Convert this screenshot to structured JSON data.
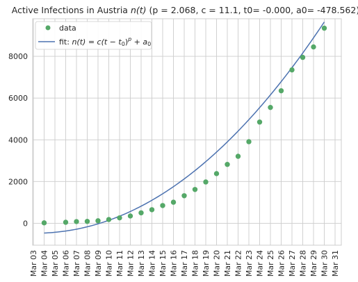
{
  "chart_data": {
    "type": "scatter",
    "title_parts": [
      "Active Infections in Austria ",
      "n(t)",
      " (p = 2.068, c = 11.1, t0= -0.000, a0= -478.562)"
    ],
    "xlabel": "",
    "ylabel": "",
    "x_ticks": [
      "Mar 03",
      "Mar 04",
      "Mar 05",
      "Mar 06",
      "Mar 07",
      "Mar 08",
      "Mar 09",
      "Mar 10",
      "Mar 11",
      "Mar 12",
      "Mar 13",
      "Mar 14",
      "Mar 15",
      "Mar 16",
      "Mar 17",
      "Mar 18",
      "Mar 19",
      "Mar 20",
      "Mar 21",
      "Mar 22",
      "Mar 23",
      "Mar 24",
      "Mar 25",
      "Mar 26",
      "Mar 27",
      "Mar 28",
      "Mar 29",
      "Mar 30",
      "Mar 31"
    ],
    "y_ticks": [
      "0",
      "2000",
      "4000",
      "6000",
      "8000"
    ],
    "ylim": [
      -1050,
      9800
    ],
    "grid": true,
    "legend_position": "top-left",
    "series": [
      {
        "name": "data",
        "kind": "scatter",
        "color": "#55a868",
        "x": [
          "Mar 04",
          "Mar 06",
          "Mar 07",
          "Mar 08",
          "Mar 09",
          "Mar 10",
          "Mar 11",
          "Mar 12",
          "Mar 13",
          "Mar 14",
          "Mar 15",
          "Mar 16",
          "Mar 17",
          "Mar 18",
          "Mar 19",
          "Mar 20",
          "Mar 21",
          "Mar 22",
          "Mar 23",
          "Mar 24",
          "Mar 25",
          "Mar 26",
          "Mar 27",
          "Mar 28",
          "Mar 29",
          "Mar 30"
        ],
        "y": [
          20,
          50,
          80,
          90,
          120,
          180,
          260,
          350,
          500,
          650,
          850,
          1010,
          1320,
          1620,
          1980,
          2380,
          2820,
          3210,
          3910,
          4850,
          5550,
          6350,
          7350,
          7950,
          8450,
          9350
        ]
      },
      {
        "name_parts": [
          "fit: ",
          "n(t) = c(t − t",
          "0",
          ")",
          "p",
          " + a",
          "0"
        ],
        "kind": "line",
        "color": "#4c72b0",
        "equation": {
          "c": 11.1,
          "p": 2.068,
          "t0": 0.0,
          "a0": -478.562
        },
        "x_start": "Mar 04",
        "x_end": "Mar 30"
      }
    ]
  }
}
